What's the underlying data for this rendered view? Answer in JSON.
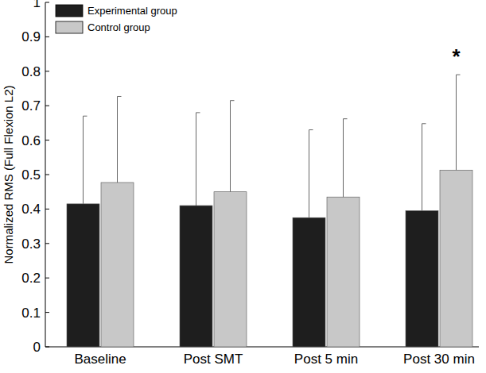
{
  "chart_data": {
    "type": "bar",
    "y_label": "Normalized RMS (Full Flexion L2)",
    "categories": [
      "Baseline",
      "Post SMT",
      "Post 5 min",
      "Post 30 min"
    ],
    "series": [
      {
        "name": "Experimental group",
        "color": "#1e1e1e",
        "values": [
          0.415,
          0.41,
          0.375,
          0.395
        ],
        "errors": [
          0.255,
          0.27,
          0.255,
          0.253
        ]
      },
      {
        "name": "Control group",
        "color": "#c8c8c8",
        "values": [
          0.477,
          0.45,
          0.435,
          0.513
        ],
        "errors": [
          0.25,
          0.265,
          0.227,
          0.277
        ]
      }
    ],
    "ylim": [
      0,
      1
    ],
    "yticks": [
      0,
      0.1,
      0.2,
      0.3,
      0.4,
      0.5,
      0.6,
      0.7,
      0.8,
      0.9,
      1
    ],
    "legend": "top-left",
    "grid": false,
    "annotations": [
      {
        "text": "*",
        "category": "Post 30 min",
        "series": "Control group"
      }
    ]
  }
}
